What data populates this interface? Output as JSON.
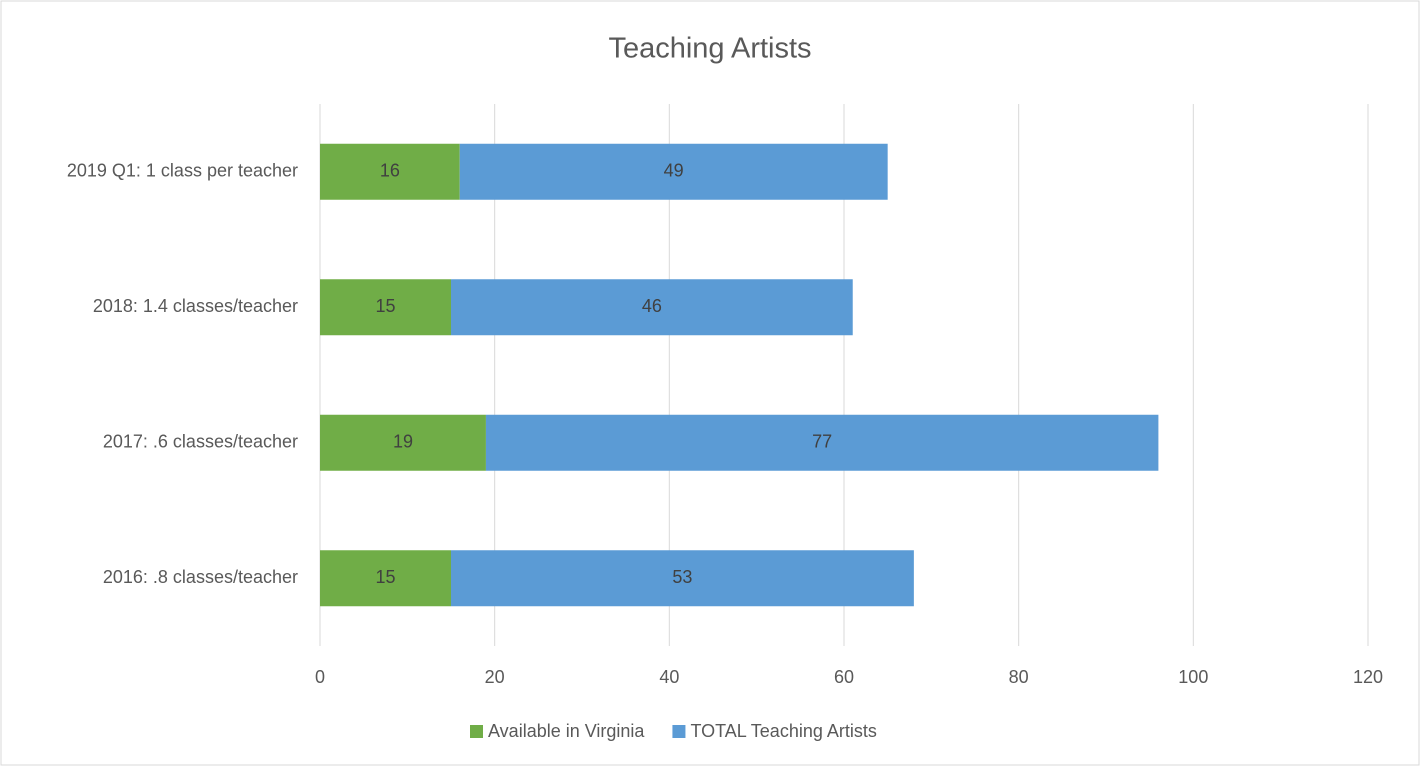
{
  "chart_data": {
    "type": "stacked_bar_horizontal",
    "title": "Teaching Artists",
    "categories": [
      "2019 Q1: 1 class per teacher",
      "2018: 1.4 classes/teacher",
      "2017: .6 classes/teacher",
      "2016: .8 classes/teacher"
    ],
    "series": [
      {
        "name": "Available in Virginia",
        "color": "#70ad47",
        "values": [
          16,
          15,
          19,
          15
        ]
      },
      {
        "name": "TOTAL Teaching Artists",
        "color": "#5b9bd5",
        "values": [
          49,
          46,
          77,
          53
        ]
      }
    ],
    "xlim": [
      0,
      120
    ],
    "xticks": [
      0,
      20,
      40,
      60,
      80,
      100,
      120
    ],
    "grid": true,
    "legend": "bottom"
  }
}
